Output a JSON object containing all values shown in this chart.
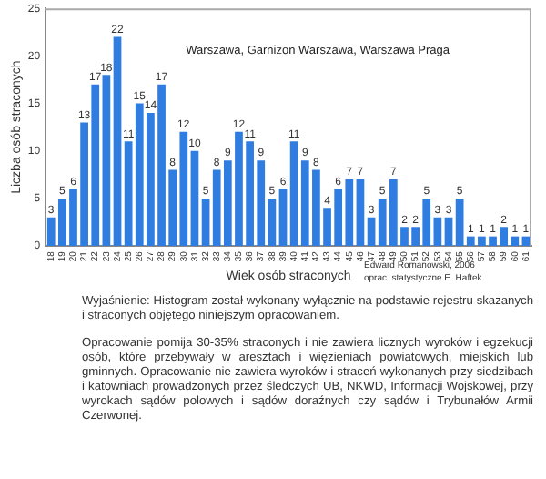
{
  "chart_data": {
    "type": "bar",
    "title": "Warszawa, Garnizon Warszawa, Warszawa Praga",
    "xlabel": "Wiek osób straconych",
    "ylabel": "Liczba osób straconych",
    "categories": [
      "18",
      "19",
      "20",
      "21",
      "22",
      "23",
      "24",
      "25",
      "26",
      "27",
      "28",
      "29",
      "30",
      "31",
      "32",
      "33",
      "34",
      "35",
      "36",
      "37",
      "38",
      "39",
      "40",
      "41",
      "42",
      "43",
      "44",
      "45",
      "46",
      "47",
      "48",
      "49",
      "50",
      "51",
      "52",
      "53",
      "54",
      "55",
      "56",
      "57",
      "58",
      "59",
      "60",
      "61"
    ],
    "values": [
      3,
      5,
      6,
      13,
      17,
      18,
      22,
      11,
      15,
      14,
      17,
      8,
      12,
      10,
      5,
      8,
      9,
      12,
      11,
      9,
      5,
      6,
      11,
      9,
      8,
      4,
      6,
      7,
      7,
      3,
      5,
      7,
      2,
      2,
      5,
      3,
      3,
      5,
      1,
      1,
      1,
      2,
      1,
      1
    ],
    "color": "#2f7de1",
    "ylim": [
      0,
      25
    ],
    "yticks": [
      0,
      5,
      10,
      15,
      20,
      25
    ],
    "grid": false,
    "legend": false,
    "data_labels": true,
    "annotations": [
      "Edward Romanowski, 2006",
      "oprac. statystyczne E. Haftek",
      "Wyjaśnienie: Histogram  został wykonany wyłącznie na podstawie rejestru skazanych i straconych objętego niniejszym opracowaniem.",
      "Opracowanie pomija 30-35% straconych i nie zawiera licznych  wyroków i egzekucji osób, które przebywały w aresztach i więzieniach powiatowych, miejskich lub gminnych. Opracowanie nie zawiera wyroków i straceń wykonanych przy siedzibach i katowniach prowadzonych przez śledczych UB, NKWD, Informacji Wojskowej, przy wyrokach sądów polowych i sądów doraźnych czy sądów i Trybunałów Armii Czerwonej."
    ]
  }
}
